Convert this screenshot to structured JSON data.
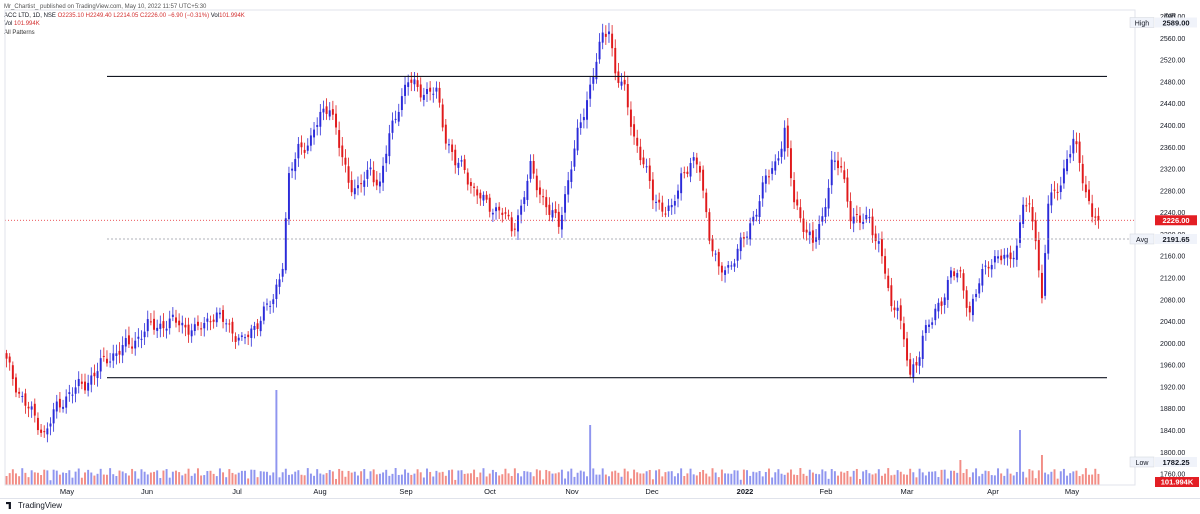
{
  "header": {
    "published": "Mr_Chartist_ published on TradingView.com, May 10, 2022 11:57 UTC+5:30",
    "symbol": "ACC LTD, 1D, NSE",
    "open": "O2235.10",
    "high": "H2249.40",
    "low": "L2214.05",
    "close": "C2226.00",
    "change": "−6.90 (−0.31%)",
    "vol_label": "Vol",
    "vol_value": "101.994K",
    "vol_value2": "101.994K",
    "indicator": "All Patterns"
  },
  "footer": {
    "brand": "TradingView"
  },
  "colors": {
    "up": "#2b2bd9",
    "down": "#e0191b",
    "vol_up": "#8f95ef",
    "vol_down": "#f28d86",
    "price_tag": "#e31e24",
    "line": "#131722"
  },
  "chart_data": {
    "type": "candlestick",
    "currency": "INR",
    "ylim": [
      1740,
      2612
    ],
    "yticks": [
      "2600.00",
      "2560.00",
      "2520.00",
      "2480.00",
      "2440.00",
      "2400.00",
      "2360.00",
      "2320.00",
      "2280.00",
      "2240.00",
      "2200.00",
      "2160.00",
      "2120.00",
      "2080.00",
      "2040.00",
      "2000.00",
      "1960.00",
      "1920.00",
      "1880.00",
      "1840.00",
      "1800.00",
      "1760.00"
    ],
    "xticks": [
      "May",
      "Jun",
      "Jul",
      "Aug",
      "Sep",
      "Oct",
      "Nov",
      "Dec",
      "2022",
      "Feb",
      "Mar",
      "Apr",
      "May"
    ],
    "markers": {
      "high": {
        "label": "High",
        "value": "2589.00"
      },
      "last": {
        "value": "2226.00"
      },
      "avg": {
        "label": "Avg",
        "value": "2191.65"
      },
      "low": {
        "label": "Low",
        "value": "1782.25"
      },
      "volume": {
        "value": "101.994K"
      }
    },
    "horizontal_lines": [
      2490,
      1937
    ],
    "anchors": [
      [
        0,
        1965
      ],
      [
        4,
        1910
      ],
      [
        8,
        1870
      ],
      [
        12,
        1835
      ],
      [
        16,
        1880
      ],
      [
        20,
        1910
      ],
      [
        25,
        1925
      ],
      [
        30,
        1960
      ],
      [
        35,
        1985
      ],
      [
        40,
        2000
      ],
      [
        45,
        2030
      ],
      [
        50,
        2035
      ],
      [
        55,
        2040
      ],
      [
        60,
        2020
      ],
      [
        65,
        2050
      ],
      [
        70,
        2040
      ],
      [
        75,
        2000
      ],
      [
        80,
        2040
      ],
      [
        85,
        2080
      ],
      [
        88,
        2150
      ],
      [
        90,
        2300
      ],
      [
        93,
        2360
      ],
      [
        97,
        2370
      ],
      [
        100,
        2420
      ],
      [
        103,
        2440
      ],
      [
        106,
        2360
      ],
      [
        109,
        2300
      ],
      [
        112,
        2280
      ],
      [
        116,
        2320
      ],
      [
        119,
        2290
      ],
      [
        122,
        2380
      ],
      [
        125,
        2440
      ],
      [
        128,
        2480
      ],
      [
        131,
        2470
      ],
      [
        134,
        2460
      ],
      [
        137,
        2460
      ],
      [
        140,
        2380
      ],
      [
        143,
        2330
      ],
      [
        146,
        2320
      ],
      [
        149,
        2280
      ],
      [
        152,
        2260
      ],
      [
        155,
        2250
      ],
      [
        158,
        2240
      ],
      [
        161,
        2210
      ],
      [
        164,
        2250
      ],
      [
        167,
        2320
      ],
      [
        170,
        2280
      ],
      [
        173,
        2240
      ],
      [
        176,
        2220
      ],
      [
        179,
        2300
      ],
      [
        182,
        2380
      ],
      [
        185,
        2450
      ],
      [
        188,
        2520
      ],
      [
        190,
        2560
      ],
      [
        192,
        2580
      ],
      [
        194,
        2500
      ],
      [
        197,
        2460
      ],
      [
        200,
        2380
      ],
      [
        203,
        2330
      ],
      [
        206,
        2270
      ],
      [
        209,
        2250
      ],
      [
        212,
        2240
      ],
      [
        215,
        2310
      ],
      [
        218,
        2330
      ],
      [
        221,
        2320
      ],
      [
        224,
        2200
      ],
      [
        227,
        2130
      ],
      [
        230,
        2140
      ],
      [
        233,
        2170
      ],
      [
        236,
        2200
      ],
      [
        239,
        2250
      ],
      [
        242,
        2300
      ],
      [
        245,
        2330
      ],
      [
        248,
        2390
      ],
      [
        251,
        2260
      ],
      [
        254,
        2220
      ],
      [
        257,
        2180
      ],
      [
        260,
        2230
      ],
      [
        263,
        2330
      ],
      [
        266,
        2320
      ],
      [
        269,
        2240
      ],
      [
        272,
        2220
      ],
      [
        275,
        2230
      ],
      [
        278,
        2180
      ],
      [
        280,
        2130
      ],
      [
        282,
        2060
      ],
      [
        284,
        2080
      ],
      [
        286,
        2000
      ],
      [
        288,
        1940
      ],
      [
        290,
        1960
      ],
      [
        292,
        2020
      ],
      [
        295,
        2040
      ],
      [
        298,
        2080
      ],
      [
        301,
        2130
      ],
      [
        304,
        2120
      ],
      [
        307,
        2060
      ],
      [
        310,
        2110
      ],
      [
        313,
        2150
      ],
      [
        316,
        2160
      ],
      [
        319,
        2150
      ],
      [
        322,
        2180
      ],
      [
        324,
        2260
      ],
      [
        326,
        2240
      ],
      [
        328,
        2200
      ],
      [
        330,
        2080
      ],
      [
        332,
        2260
      ],
      [
        334,
        2270
      ],
      [
        336,
        2300
      ],
      [
        338,
        2340
      ],
      [
        340,
        2370
      ],
      [
        342,
        2330
      ],
      [
        344,
        2280
      ],
      [
        346,
        2240
      ],
      [
        348,
        2226
      ]
    ],
    "volume_bars": 349
  }
}
